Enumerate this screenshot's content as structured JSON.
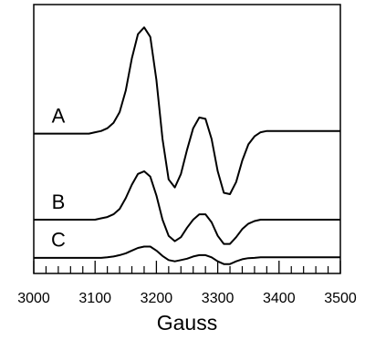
{
  "chart_data": {
    "type": "line",
    "xlabel": "Gauss",
    "x": [
      3000,
      3010,
      3020,
      3030,
      3040,
      3050,
      3060,
      3070,
      3080,
      3090,
      3100,
      3110,
      3120,
      3130,
      3140,
      3150,
      3160,
      3170,
      3180,
      3190,
      3200,
      3210,
      3220,
      3230,
      3240,
      3250,
      3260,
      3270,
      3280,
      3290,
      3300,
      3310,
      3320,
      3330,
      3340,
      3350,
      3360,
      3370,
      3380,
      3390,
      3400,
      3410,
      3420,
      3430,
      3440,
      3450,
      3460,
      3470,
      3480,
      3490,
      3500
    ],
    "series": [
      {
        "name": "A",
        "color": "#000000",
        "values": [
          52,
          52,
          52,
          52,
          52,
          52,
          52,
          52,
          52,
          52,
          52.5,
          53,
          54,
          56,
          60,
          68,
          80,
          89,
          91.5,
          88,
          72,
          50,
          35,
          32,
          37,
          46,
          54,
          58,
          57.5,
          50,
          38,
          30,
          29.5,
          34,
          42,
          48,
          51,
          52.5,
          53,
          53,
          53,
          53,
          53,
          53,
          53,
          53,
          53,
          53,
          53,
          53,
          53
        ]
      },
      {
        "name": "B",
        "color": "#000000",
        "values": [
          20,
          20,
          20,
          20,
          20,
          20,
          20,
          20,
          20,
          20,
          20,
          20.5,
          21,
          22,
          24,
          28,
          33,
          37,
          38,
          36,
          29,
          20,
          14,
          12,
          13.5,
          17,
          20,
          22,
          22,
          19,
          14,
          11,
          11,
          13.5,
          16.5,
          18.5,
          19.5,
          20,
          20,
          20,
          20,
          20,
          20,
          20,
          20,
          20,
          20,
          20,
          20,
          20,
          20
        ]
      },
      {
        "name": "C",
        "color": "#000000",
        "values": [
          5.8,
          5.8,
          5.8,
          5.8,
          5.8,
          5.8,
          5.8,
          5.8,
          5.8,
          5.8,
          5.8,
          5.8,
          6,
          6.3,
          6.8,
          7.5,
          8.5,
          9.5,
          10,
          10,
          8.5,
          6.5,
          5,
          4.5,
          5,
          5.5,
          6.3,
          6.8,
          6.8,
          6,
          4.5,
          3.5,
          3.5,
          4.5,
          5.3,
          5.7,
          5.8,
          6,
          6,
          6,
          6,
          6,
          6,
          6,
          6,
          6,
          6,
          6,
          6,
          6,
          6
        ]
      }
    ],
    "xlim": [
      3000,
      3500
    ],
    "xticks": [
      3000,
      3100,
      3200,
      3300,
      3400,
      3500
    ],
    "xticks_minor": [
      3020,
      3040,
      3060,
      3080,
      3120,
      3140,
      3160,
      3180,
      3220,
      3240,
      3260,
      3280,
      3320,
      3340,
      3360,
      3380,
      3420,
      3440,
      3460,
      3480
    ],
    "ylim": [
      0,
      100
    ],
    "grid": false
  }
}
